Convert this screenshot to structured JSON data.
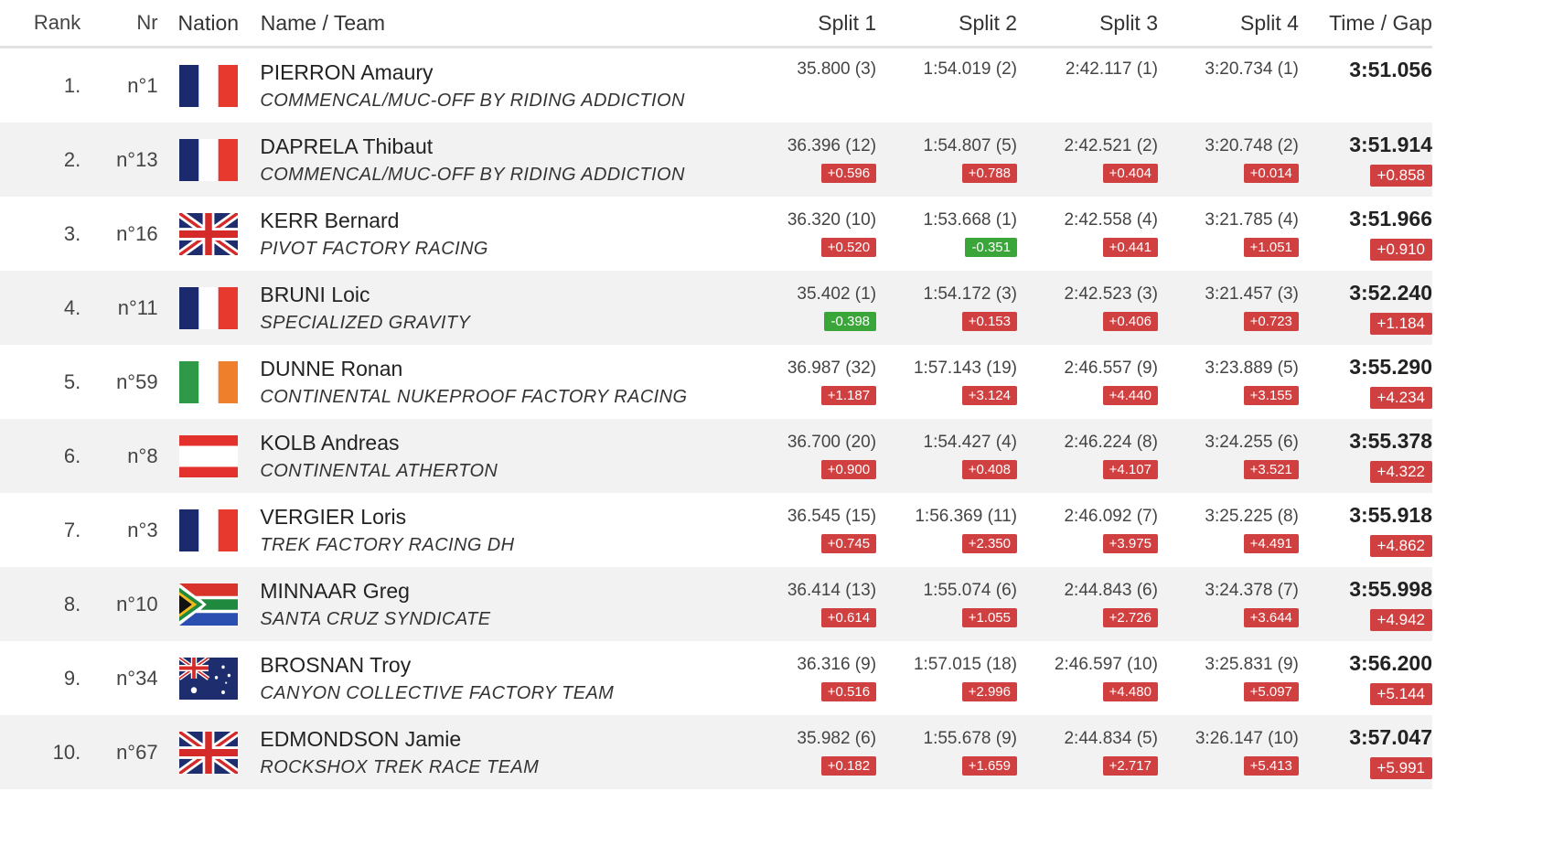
{
  "headers": {
    "rank": "Rank",
    "nr": "Nr",
    "nation": "Nation",
    "name": "Name / Team",
    "split1": "Split 1",
    "split2": "Split 2",
    "split3": "Split 3",
    "split4": "Split 4",
    "time": "Time / Gap"
  },
  "rows": [
    {
      "rank": "1.",
      "nr": "n°1",
      "flag": "fr-flag-icon",
      "name": "PIERRON Amaury",
      "team": "COMMENCAL/MUC-OFF BY RIDING ADDICTION",
      "splits": [
        "35.800 (3)",
        "1:54.019 (2)",
        "2:42.117 (1)",
        "3:20.734 (1)"
      ],
      "deltas": [
        "",
        "",
        "",
        ""
      ],
      "time": "3:51.056",
      "gap": ""
    },
    {
      "rank": "2.",
      "nr": "n°13",
      "flag": "fr-flag-icon",
      "name": "DAPRELA Thibaut",
      "team": "COMMENCAL/MUC-OFF BY RIDING ADDICTION",
      "splits": [
        "36.396 (12)",
        "1:54.807 (5)",
        "2:42.521 (2)",
        "3:20.748 (2)"
      ],
      "deltas": [
        "+0.596",
        "+0.788",
        "+0.404",
        "+0.014"
      ],
      "time": "3:51.914",
      "gap": "+0.858"
    },
    {
      "rank": "3.",
      "nr": "n°16",
      "flag": "gb-flag-icon",
      "name": "KERR Bernard",
      "team": "PIVOT FACTORY RACING",
      "splits": [
        "36.320 (10)",
        "1:53.668 (1)",
        "2:42.558 (4)",
        "3:21.785 (4)"
      ],
      "deltas": [
        "+0.520",
        "-0.351",
        "+0.441",
        "+1.051"
      ],
      "time": "3:51.966",
      "gap": "+0.910"
    },
    {
      "rank": "4.",
      "nr": "n°11",
      "flag": "fr-flag-icon",
      "name": "BRUNI Loic",
      "team": "SPECIALIZED GRAVITY",
      "splits": [
        "35.402 (1)",
        "1:54.172 (3)",
        "2:42.523 (3)",
        "3:21.457 (3)"
      ],
      "deltas": [
        "-0.398",
        "+0.153",
        "+0.406",
        "+0.723"
      ],
      "time": "3:52.240",
      "gap": "+1.184"
    },
    {
      "rank": "5.",
      "nr": "n°59",
      "flag": "ie-flag-icon",
      "name": "DUNNE Ronan",
      "team": "CONTINENTAL NUKEPROOF FACTORY RACING",
      "splits": [
        "36.987 (32)",
        "1:57.143 (19)",
        "2:46.557 (9)",
        "3:23.889 (5)"
      ],
      "deltas": [
        "+1.187",
        "+3.124",
        "+4.440",
        "+3.155"
      ],
      "time": "3:55.290",
      "gap": "+4.234"
    },
    {
      "rank": "6.",
      "nr": "n°8",
      "flag": "at-flag-icon",
      "name": "KOLB Andreas",
      "team": "CONTINENTAL ATHERTON",
      "splits": [
        "36.700 (20)",
        "1:54.427 (4)",
        "2:46.224 (8)",
        "3:24.255 (6)"
      ],
      "deltas": [
        "+0.900",
        "+0.408",
        "+4.107",
        "+3.521"
      ],
      "time": "3:55.378",
      "gap": "+4.322"
    },
    {
      "rank": "7.",
      "nr": "n°3",
      "flag": "fr-flag-icon",
      "name": "VERGIER Loris",
      "team": "TREK FACTORY RACING DH",
      "splits": [
        "36.545 (15)",
        "1:56.369 (11)",
        "2:46.092 (7)",
        "3:25.225 (8)"
      ],
      "deltas": [
        "+0.745",
        "+2.350",
        "+3.975",
        "+4.491"
      ],
      "time": "3:55.918",
      "gap": "+4.862"
    },
    {
      "rank": "8.",
      "nr": "n°10",
      "flag": "za-flag-icon",
      "name": "MINNAAR Greg",
      "team": "SANTA CRUZ SYNDICATE",
      "splits": [
        "36.414 (13)",
        "1:55.074 (6)",
        "2:44.843 (6)",
        "3:24.378 (7)"
      ],
      "deltas": [
        "+0.614",
        "+1.055",
        "+2.726",
        "+3.644"
      ],
      "time": "3:55.998",
      "gap": "+4.942"
    },
    {
      "rank": "9.",
      "nr": "n°34",
      "flag": "au-flag-icon",
      "name": "BROSNAN Troy",
      "team": "CANYON COLLECTIVE FACTORY TEAM",
      "splits": [
        "36.316 (9)",
        "1:57.015 (18)",
        "2:46.597 (10)",
        "3:25.831 (9)"
      ],
      "deltas": [
        "+0.516",
        "+2.996",
        "+4.480",
        "+5.097"
      ],
      "time": "3:56.200",
      "gap": "+5.144"
    },
    {
      "rank": "10.",
      "nr": "n°67",
      "flag": "gb-flag-icon",
      "name": "EDMONDSON Jamie",
      "team": "ROCKSHOX TREK RACE TEAM",
      "splits": [
        "35.982 (6)",
        "1:55.678 (9)",
        "2:44.834 (5)",
        "3:26.147 (10)"
      ],
      "deltas": [
        "+0.182",
        "+1.659",
        "+2.717",
        "+5.413"
      ],
      "time": "3:57.047",
      "gap": "+5.991"
    }
  ],
  "colors": {
    "positive_badge": "#d04040",
    "negative_badge": "#3aa63a",
    "row_alt": "#f2f2f2"
  }
}
